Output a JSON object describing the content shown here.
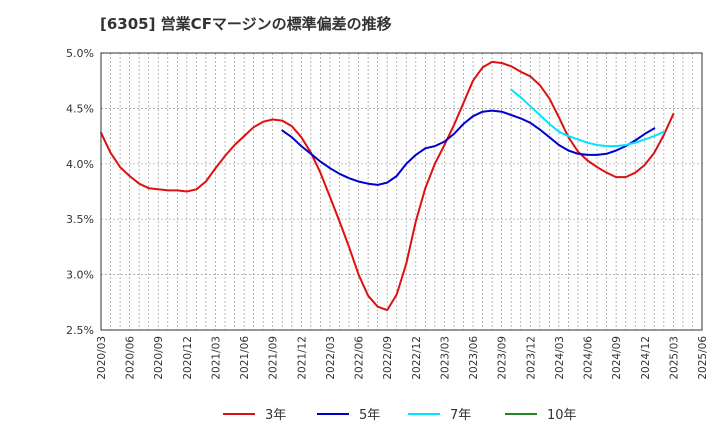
{
  "chart_data": {
    "type": "line",
    "title": "[6305]  営業CFマージンの標準偏差の推移",
    "xlabel": "",
    "ylabel": "",
    "ylim": [
      2.5,
      5.0
    ],
    "y_ticks": [
      "2.5%",
      "3.0%",
      "3.5%",
      "4.0%",
      "4.5%",
      "5.0%"
    ],
    "x_ticks": [
      "2020/03",
      "2020/06",
      "2020/09",
      "2020/12",
      "2021/03",
      "2021/06",
      "2021/09",
      "2021/12",
      "2022/03",
      "2022/06",
      "2022/09",
      "2022/12",
      "2023/03",
      "2023/06",
      "2023/09",
      "2023/12",
      "2024/03",
      "2024/06",
      "2024/09",
      "2024/12",
      "2025/03",
      "2025/06"
    ],
    "grid": true,
    "legend_position": "bottom",
    "series": [
      {
        "name": "3年",
        "color": "#dd1111",
        "start": "2020/03",
        "values": [
          4.28,
          4.1,
          3.97,
          3.89,
          3.82,
          3.78,
          3.77,
          3.76,
          3.76,
          3.75,
          3.77,
          3.84,
          3.96,
          4.07,
          4.17,
          4.25,
          4.33,
          4.38,
          4.4,
          4.39,
          4.34,
          4.24,
          4.1,
          3.92,
          3.7,
          3.48,
          3.25,
          3.0,
          2.81,
          2.71,
          2.68,
          2.82,
          3.1,
          3.48,
          3.78,
          4.0,
          4.17,
          4.35,
          4.55,
          4.75,
          4.87,
          4.92,
          4.91,
          4.88,
          4.83,
          4.79,
          4.71,
          4.59,
          4.42,
          4.24,
          4.11,
          4.03,
          3.97,
          3.92,
          3.88,
          3.88,
          3.92,
          3.99,
          4.1,
          4.26,
          4.45
        ]
      },
      {
        "name": "5年",
        "color": "#0000cc",
        "start": "2021/10",
        "values": [
          4.3,
          4.24,
          4.16,
          4.09,
          4.02,
          3.96,
          3.91,
          3.87,
          3.84,
          3.82,
          3.81,
          3.83,
          3.89,
          4.0,
          4.08,
          4.14,
          4.16,
          4.2,
          4.27,
          4.36,
          4.43,
          4.47,
          4.48,
          4.47,
          4.44,
          4.41,
          4.37,
          4.31,
          4.24,
          4.17,
          4.12,
          4.09,
          4.08,
          4.08,
          4.09,
          4.12,
          4.16,
          4.21,
          4.27,
          4.32
        ]
      },
      {
        "name": "7年",
        "color": "#00e5ff",
        "start": "2023/10",
        "values": [
          4.67,
          4.6,
          4.52,
          4.44,
          4.36,
          4.29,
          4.25,
          4.22,
          4.19,
          4.17,
          4.16,
          4.16,
          4.17,
          4.19,
          4.22,
          4.25,
          4.29
        ]
      },
      {
        "name": "10年",
        "color": "#228822",
        "start": "2025/03",
        "values": []
      }
    ]
  }
}
